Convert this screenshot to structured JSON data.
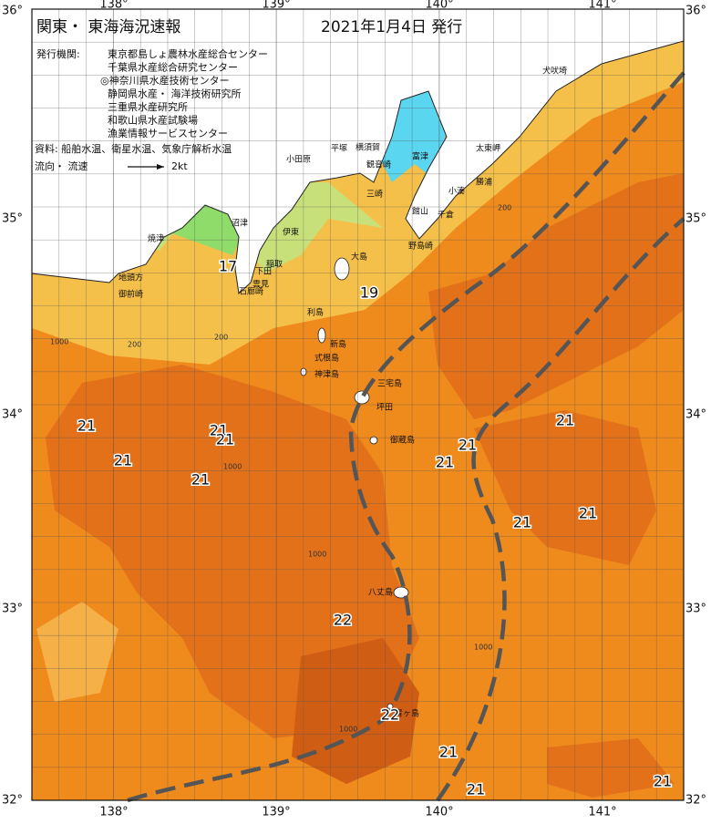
{
  "header": {
    "title": "関東・ 東海海況速報",
    "date": "2021年1月4日 発行"
  },
  "issuers": {
    "label": "発行機関:",
    "items": [
      "東京都島しょ農林水産総合センター",
      "千葉県水産総合研究センター",
      "◎神奈川県水産技術センター",
      "静岡県水産・ 海洋技術研究所",
      "三重県水産研究所",
      "和歌山県水産試験場",
      "漁業情報サービスセンター"
    ]
  },
  "source": "資料: 船舶水温、衛星水温、気象庁解析水温",
  "legend": {
    "label": "流向・ 流速",
    "speed": "2kt"
  },
  "axes": {
    "lon": [
      "138°",
      "139°",
      "140°",
      "141°"
    ],
    "lat": [
      "36°",
      "35°",
      "34°",
      "33°",
      "32°"
    ]
  },
  "places": [
    "犬吠埼",
    "太東岬",
    "勝浦",
    "小湊",
    "千倉",
    "館山",
    "野島崎",
    "富津",
    "横須賀",
    "観音崎",
    "三崎",
    "平塚",
    "小田原",
    "伊東",
    "稲取",
    "下田",
    "雲見",
    "石廊崎",
    "沼津",
    "焼津",
    "地頭方",
    "御前崎",
    "大島",
    "利島",
    "新島",
    "式根島",
    "神津島",
    "三宅島",
    "坪田",
    "御蔵島",
    "八丈島",
    "青ヶ島"
  ],
  "temperatures": [
    "17",
    "19",
    "21",
    "21",
    "21",
    "21",
    "21",
    "21",
    "21",
    "21",
    "21",
    "21",
    "22",
    "22",
    "21",
    "21",
    "21"
  ],
  "depths": [
    "1000",
    "200",
    "200",
    "1000",
    "1000",
    "1000",
    "1000",
    "200"
  ]
}
